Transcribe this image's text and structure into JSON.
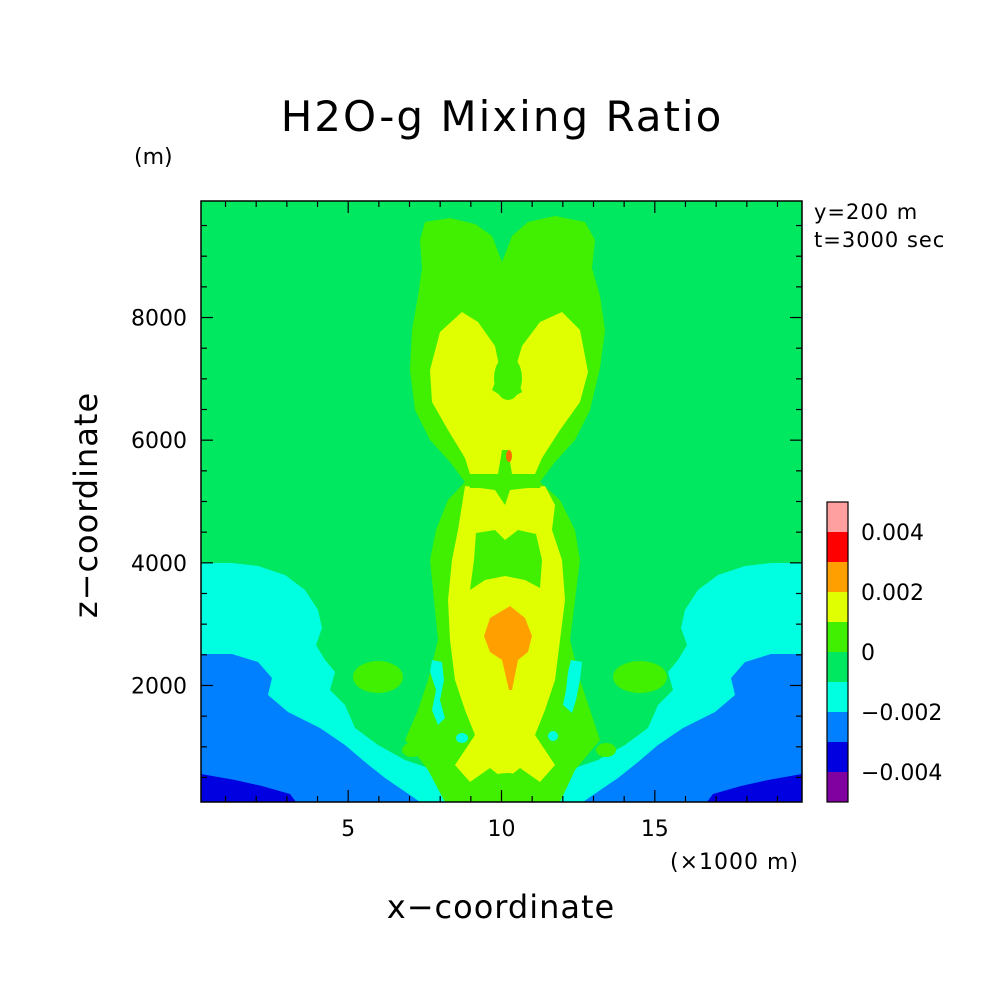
{
  "chart_data": {
    "type": "heatmap",
    "title": "H2O-g Mixing Ratio",
    "xlabel": "x−coordinate",
    "ylabel": "z−coordinate",
    "x_unit_label": "(×1000 m)",
    "y_unit_label": "(m)",
    "annotations": [
      "y=200 m",
      "t=3000 sec"
    ],
    "xlim": [
      0.2,
      19.8
    ],
    "ylim": [
      100,
      9900
    ],
    "x_ticks": [
      5,
      10,
      15
    ],
    "x_tick_labels": [
      "5",
      "10",
      "15"
    ],
    "y_ticks": [
      2000,
      4000,
      6000,
      8000
    ],
    "y_tick_labels": [
      "2000",
      "4000",
      "6000",
      "8000"
    ],
    "colorbar": {
      "levels": [
        -0.005,
        -0.004,
        -0.003,
        -0.002,
        -0.001,
        0,
        0.001,
        0.002,
        0.003,
        0.004,
        0.005
      ],
      "colors": [
        "#8000a0",
        "#0000e0",
        "#0080ff",
        "#00ffe0",
        "#00e860",
        "#40f000",
        "#e0ff00",
        "#ffa000",
        "#ff0000",
        "#ffa0a0"
      ],
      "tick_values": [
        -0.004,
        -0.002,
        0,
        0.002,
        0.004
      ],
      "tick_labels": [
        "−0.004",
        "−0.002",
        "0",
        "0.002",
        "0.004"
      ]
    },
    "regions": [
      {
        "name": "background",
        "value": 0,
        "color": "#00e860",
        "x": [
          0.2,
          19.8
        ],
        "z": [
          100,
          9900
        ]
      },
      {
        "name": "plume-outer",
        "value": 0.0005,
        "color": "#40f000",
        "x": [
          7.0,
          13.0
        ],
        "z": [
          100,
          9700
        ]
      },
      {
        "name": "plume-upper-core",
        "value": 0.0015,
        "color": "#e0ff00",
        "x": [
          7.7,
          12.6
        ],
        "z": [
          5500,
          8100
        ]
      },
      {
        "name": "plume-lower-core",
        "value": 0.0015,
        "color": "#e0ff00",
        "x": [
          8.5,
          11.8
        ],
        "z": [
          500,
          5300
        ]
      },
      {
        "name": "core-max",
        "value": 0.0025,
        "color": "#ffa000",
        "x": [
          9.5,
          11.0
        ],
        "z": [
          1800,
          3300
        ]
      },
      {
        "name": "left-dry-layer",
        "value": -0.0015,
        "color": "#00ffe0",
        "x": [
          0.2,
          8.8
        ],
        "z": [
          100,
          4000
        ]
      },
      {
        "name": "right-dry-layer",
        "value": -0.0015,
        "color": "#00ffe0",
        "x": [
          11.8,
          19.8
        ],
        "z": [
          100,
          4000
        ]
      },
      {
        "name": "left-drier-layer",
        "value": -0.0025,
        "color": "#0080ff",
        "x": [
          0.2,
          6.5
        ],
        "z": [
          100,
          2500
        ]
      },
      {
        "name": "right-drier-layer",
        "value": -0.0025,
        "color": "#0080ff",
        "x": [
          14.5,
          19.8
        ],
        "z": [
          100,
          2500
        ]
      },
      {
        "name": "left-driest-layer",
        "value": -0.0035,
        "color": "#0000e0",
        "x": [
          0.2,
          3.0
        ],
        "z": [
          100,
          500
        ]
      },
      {
        "name": "right-driest-layer",
        "value": -0.0035,
        "color": "#0000e0",
        "x": [
          17.3,
          19.8
        ],
        "z": [
          100,
          500
        ]
      }
    ]
  }
}
